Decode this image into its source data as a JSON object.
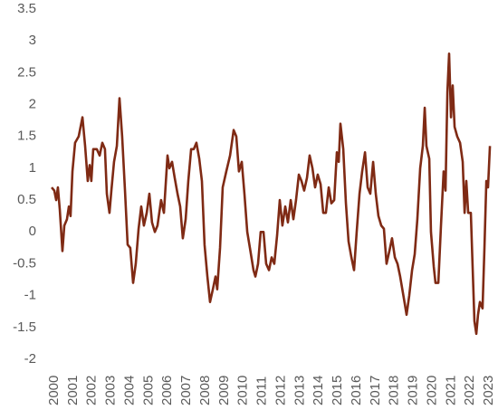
{
  "chart_data": {
    "type": "line",
    "x": [
      1999.86,
      2000,
      2000.1,
      2000.19,
      2000.29,
      2000.43,
      2000.53,
      2000.67,
      2000.77,
      2000.86,
      2000.96,
      2001.1,
      2001.29,
      2001.49,
      2001.63,
      2001.77,
      2001.87,
      2001.96,
      2002.06,
      2002.25,
      2002.4,
      2002.54,
      2002.68,
      2002.78,
      2002.92,
      2003.02,
      2003.16,
      2003.31,
      2003.45,
      2003.59,
      2003.74,
      2003.88,
      2004.02,
      2004.17,
      2004.31,
      2004.46,
      2004.6,
      2004.74,
      2004.89,
      2005.03,
      2005.17,
      2005.32,
      2005.46,
      2005.65,
      2005.8,
      2005.99,
      2006.09,
      2006.23,
      2006.37,
      2006.52,
      2006.66,
      2006.8,
      2006.95,
      2007.09,
      2007.24,
      2007.38,
      2007.52,
      2007.67,
      2007.81,
      2007.95,
      2008.1,
      2008.24,
      2008.39,
      2008.53,
      2008.62,
      2008.77,
      2008.91,
      2009.1,
      2009.3,
      2009.49,
      2009.63,
      2009.77,
      2009.92,
      2010.06,
      2010.21,
      2010.35,
      2010.54,
      2010.64,
      2010.78,
      2010.92,
      2011.07,
      2011.21,
      2011.36,
      2011.5,
      2011.64,
      2011.79,
      2011.93,
      2012.07,
      2012.22,
      2012.36,
      2012.51,
      2012.65,
      2012.79,
      2012.94,
      2013.08,
      2013.22,
      2013.37,
      2013.51,
      2013.66,
      2013.8,
      2013.94,
      2014.09,
      2014.23,
      2014.37,
      2014.52,
      2014.66,
      2014.81,
      2014.95,
      2015.05,
      2015.14,
      2015.29,
      2015.43,
      2015.57,
      2015.72,
      2015.86,
      2016.0,
      2016.15,
      2016.29,
      2016.44,
      2016.58,
      2016.72,
      2016.87,
      2017.01,
      2017.15,
      2017.3,
      2017.44,
      2017.58,
      2017.73,
      2017.87,
      2018.02,
      2018.16,
      2018.3,
      2018.5,
      2018.64,
      2018.78,
      2018.93,
      2019.07,
      2019.21,
      2019.36,
      2019.5,
      2019.6,
      2019.69,
      2019.84,
      2019.93,
      2020.08,
      2020.17,
      2020.32,
      2020.46,
      2020.6,
      2020.7,
      2020.8,
      2020.89,
      2020.99,
      2021.08,
      2021.18,
      2021.32,
      2021.47,
      2021.61,
      2021.71,
      2021.8,
      2021.9,
      2022.04,
      2022.14,
      2022.23,
      2022.33,
      2022.42,
      2022.52,
      2022.66,
      2022.76,
      2022.86,
      2022.95,
      2023.05
    ],
    "series": [
      {
        "color": "#7f2a14",
        "values": [
          0.7,
          0.65,
          0.5,
          0.7,
          0.35,
          -0.3,
          0.1,
          0.2,
          0.4,
          0.25,
          0.95,
          1.4,
          1.5,
          1.8,
          1.35,
          0.8,
          1.05,
          0.8,
          1.3,
          1.3,
          1.2,
          1.4,
          1.3,
          0.6,
          0.3,
          0.65,
          1.1,
          1.35,
          2.1,
          1.5,
          0.65,
          -0.2,
          -0.25,
          -0.8,
          -0.5,
          0.05,
          0.4,
          0.1,
          0.3,
          0.6,
          0.15,
          0.0,
          0.1,
          0.5,
          0.3,
          1.2,
          1.0,
          1.1,
          0.85,
          0.6,
          0.4,
          -0.1,
          0.2,
          0.8,
          1.3,
          1.3,
          1.4,
          1.15,
          0.8,
          -0.2,
          -0.7,
          -1.1,
          -0.9,
          -0.7,
          -0.9,
          -0.25,
          0.7,
          0.95,
          1.2,
          1.6,
          1.5,
          0.95,
          1.1,
          0.6,
          0.0,
          -0.25,
          -0.6,
          -0.7,
          -0.5,
          0.0,
          0.0,
          -0.5,
          -0.6,
          -0.4,
          -0.5,
          -0.05,
          0.5,
          0.1,
          0.4,
          0.15,
          0.5,
          0.2,
          0.5,
          0.9,
          0.8,
          0.65,
          0.85,
          1.2,
          1.0,
          0.7,
          0.9,
          0.75,
          0.3,
          0.3,
          0.7,
          0.45,
          0.5,
          1.25,
          1.1,
          1.7,
          1.3,
          0.45,
          -0.15,
          -0.4,
          -0.6,
          0.0,
          0.6,
          0.95,
          1.25,
          0.7,
          0.6,
          1.1,
          0.6,
          0.25,
          0.1,
          0.05,
          -0.5,
          -0.3,
          -0.1,
          -0.4,
          -0.5,
          -0.7,
          -1.05,
          -1.3,
          -1.0,
          -0.6,
          -0.35,
          0.2,
          1.0,
          1.35,
          1.95,
          1.35,
          1.15,
          0.0,
          -0.55,
          -0.8,
          -0.8,
          0.1,
          0.95,
          0.65,
          2.2,
          2.8,
          1.8,
          2.3,
          1.65,
          1.5,
          1.4,
          1.1,
          0.3,
          0.8,
          0.3,
          0.3,
          -0.6,
          -1.4,
          -1.6,
          -1.3,
          -1.1,
          -1.2,
          -0.25,
          0.8,
          0.7,
          1.35
        ]
      }
    ],
    "xlim": [
      1999.8,
      2023.3
    ],
    "xticks": [
      2000,
      2001,
      2002,
      2003,
      2004,
      2005,
      2006,
      2007,
      2008,
      2009,
      2010,
      2011,
      2012,
      2013,
      2014,
      2015,
      2016,
      2017,
      2018,
      2019,
      2020,
      2021,
      2022,
      2023
    ],
    "ylim": [
      -2,
      3.5
    ],
    "yticks": [
      -2,
      -1.5,
      -1,
      -0.5,
      0,
      0.5,
      1,
      1.5,
      2,
      2.5,
      3,
      3.5
    ],
    "grid": false
  }
}
